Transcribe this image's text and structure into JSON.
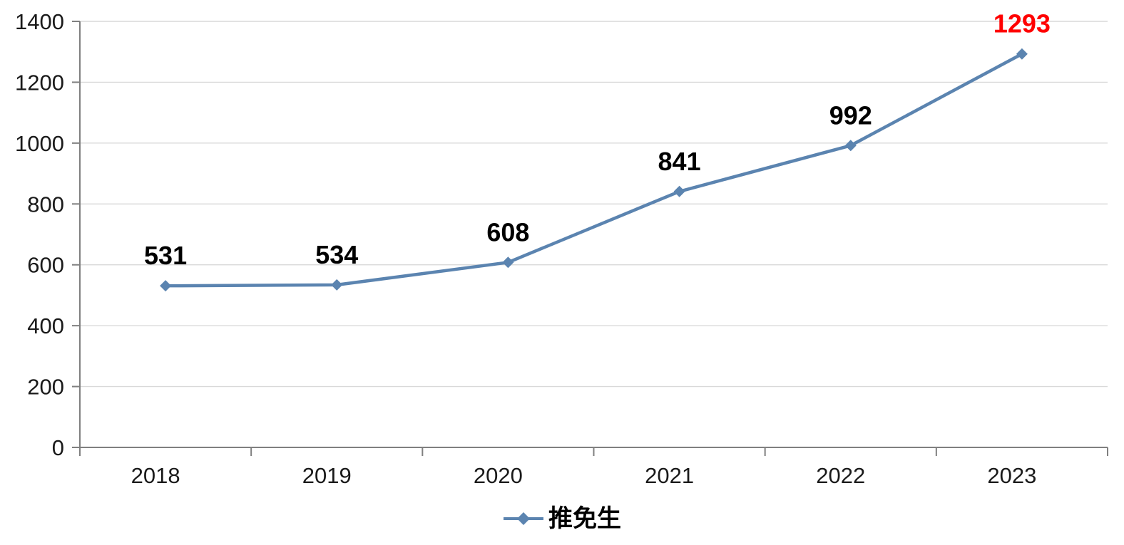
{
  "legend": {
    "label": "推免生"
  },
  "chart_data": {
    "type": "line",
    "title": "",
    "xlabel": "",
    "ylabel": "",
    "categories": [
      "2018",
      "2019",
      "2020",
      "2021",
      "2022",
      "2023"
    ],
    "series": [
      {
        "name": "推免生",
        "values": [
          531,
          534,
          608,
          841,
          992,
          1293
        ]
      }
    ],
    "data_labels": [
      "531",
      "534",
      "608",
      "841",
      "992",
      "1293"
    ],
    "highlight_index": 5,
    "yticks": [
      0,
      200,
      400,
      600,
      800,
      1000,
      1200,
      1400
    ],
    "ylim": [
      0,
      1400
    ],
    "grid": "horizontal-only",
    "legend_position": "bottom-center",
    "marker_shape": "diamond",
    "colors": {
      "line": "#5B84B0",
      "marker": "#5B84B0",
      "data_label": "#000000",
      "highlight_data_label": "#FF0000",
      "gridline": "#D9D9D9",
      "axis": "#808080",
      "tick_label": "#1A1A1A",
      "background": "#FFFFFF"
    }
  }
}
